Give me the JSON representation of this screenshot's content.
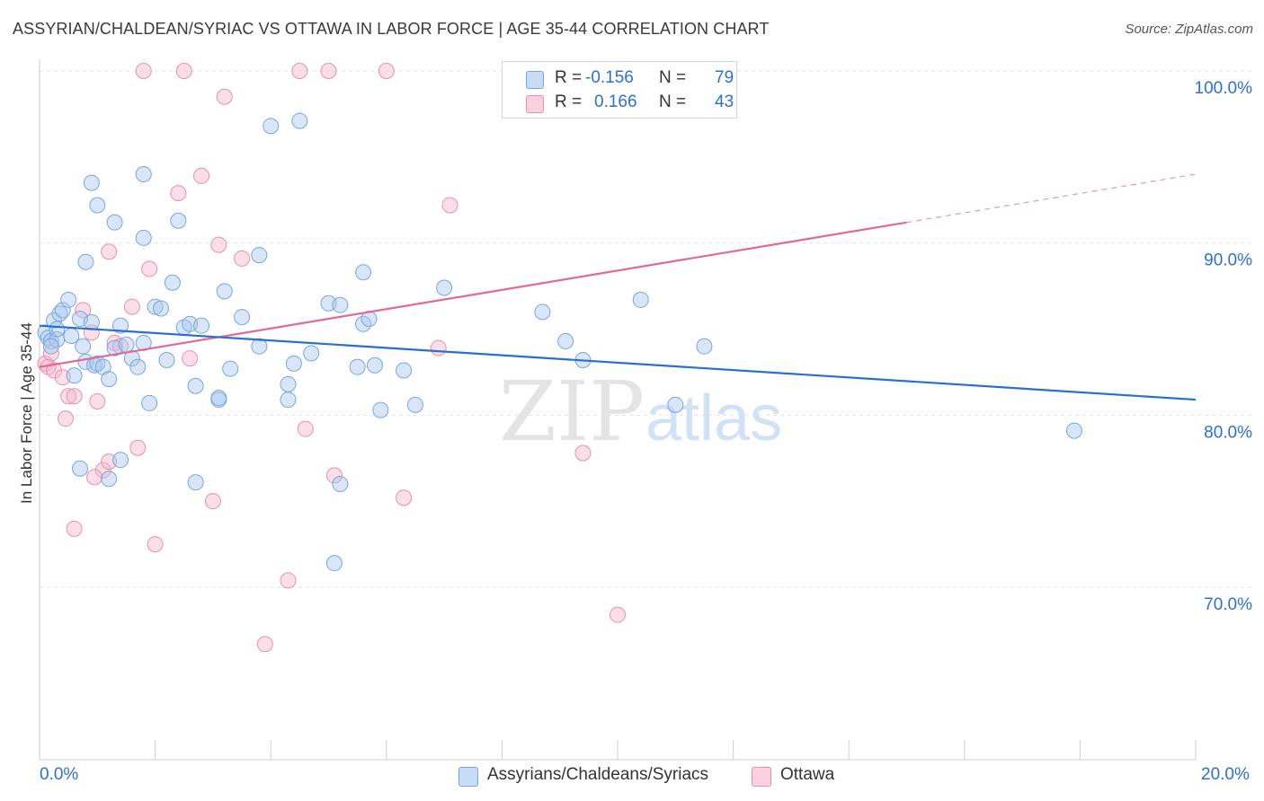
{
  "header": {
    "title": "ASSYRIAN/CHALDEAN/SYRIAC VS OTTAWA IN LABOR FORCE | AGE 35-44 CORRELATION CHART",
    "source": "Source: ZipAtlas.com"
  },
  "watermark": {
    "zip": "ZIP",
    "atlas": "atlas"
  },
  "legend": {
    "series1": {
      "r_label": "R = ",
      "r_value": "-0.156",
      "n_label": "N = ",
      "n_value": "79",
      "color": "#a8c8f0"
    },
    "series2": {
      "r_label": "R = ",
      "r_value": "0.166",
      "n_label": "N = ",
      "n_value": "43",
      "color": "#f5b8cc"
    }
  },
  "bottom_legend": {
    "series1": "Assyrians/Chaldeans/Syriacs",
    "series2": "Ottawa"
  },
  "colors": {
    "blue_fill": "#a8c8f0",
    "blue_stroke": "#7aa6dd",
    "blue_line": "#2a6fcf",
    "pink_fill": "#f5b8cc",
    "pink_stroke": "#e890ad",
    "pink_line": "#e06a94",
    "grid": "#e3e3e3",
    "axis_text": "#2e6fd0"
  },
  "chart_data": {
    "type": "scatter",
    "title": "ASSYRIAN/CHALDEAN/SYRIAC VS OTTAWA IN LABOR FORCE | AGE 35-44 CORRELATION CHART",
    "xlabel": "",
    "ylabel": "In Labor Force | Age 35-44",
    "xlim": [
      0,
      20
    ],
    "ylim": [
      60,
      101
    ],
    "x_tick_labels": [
      "0.0%",
      "20.0%"
    ],
    "y_ticks": [
      70,
      80,
      90,
      100
    ],
    "y_tick_labels": [
      "70.0%",
      "80.0%",
      "90.0%",
      "100.0%"
    ],
    "grid": true,
    "series": [
      {
        "name": "Assyrians/Chaldeans/Syriacs",
        "r": -0.156,
        "n": 79,
        "trend": {
          "x0": 0,
          "y0": 85.2,
          "x1": 20,
          "y1": 80.9,
          "x_solid_end": 20
        },
        "points": [
          [
            0.1,
            84.8
          ],
          [
            0.15,
            84.5
          ],
          [
            0.2,
            84.3
          ],
          [
            0.25,
            85.5
          ],
          [
            0.3,
            84.4
          ],
          [
            0.35,
            85.9
          ],
          [
            0.4,
            86.1
          ],
          [
            0.5,
            86.7
          ],
          [
            0.55,
            84.6
          ],
          [
            0.6,
            82.3
          ],
          [
            0.7,
            85.6
          ],
          [
            0.75,
            84.0
          ],
          [
            0.8,
            83.1
          ],
          [
            0.9,
            85.4
          ],
          [
            0.95,
            82.9
          ],
          [
            1.0,
            83.0
          ],
          [
            1.1,
            82.8
          ],
          [
            1.2,
            82.1
          ],
          [
            1.3,
            83.9
          ],
          [
            1.4,
            85.2
          ],
          [
            1.5,
            84.1
          ],
          [
            1.6,
            83.3
          ],
          [
            1.7,
            82.8
          ],
          [
            1.8,
            84.2
          ],
          [
            1.9,
            80.7
          ],
          [
            2.0,
            86.3
          ],
          [
            2.1,
            86.2
          ],
          [
            2.2,
            83.2
          ],
          [
            2.3,
            87.7
          ],
          [
            2.5,
            85.1
          ],
          [
            2.6,
            85.3
          ],
          [
            2.7,
            81.7
          ],
          [
            2.8,
            85.2
          ],
          [
            3.1,
            80.9
          ],
          [
            3.2,
            87.2
          ],
          [
            3.3,
            82.7
          ],
          [
            3.5,
            85.7
          ],
          [
            3.8,
            84.0
          ],
          [
            4.3,
            81.8
          ],
          [
            4.4,
            83.0
          ],
          [
            4.7,
            83.6
          ],
          [
            5.0,
            86.5
          ],
          [
            5.2,
            86.4
          ],
          [
            5.5,
            82.8
          ],
          [
            5.6,
            85.3
          ],
          [
            5.7,
            85.6
          ],
          [
            5.8,
            82.9
          ],
          [
            5.9,
            80.3
          ],
          [
            6.3,
            82.6
          ],
          [
            6.5,
            80.6
          ],
          [
            7.0,
            87.4
          ],
          [
            8.7,
            86.0
          ],
          [
            9.1,
            84.3
          ],
          [
            9.4,
            83.2
          ],
          [
            10.4,
            86.7
          ],
          [
            11.0,
            80.6
          ],
          [
            11.5,
            84.0
          ],
          [
            0.9,
            93.5
          ],
          [
            1.3,
            91.2
          ],
          [
            1.0,
            92.2
          ],
          [
            1.8,
            94.0
          ],
          [
            2.4,
            91.3
          ],
          [
            1.8,
            90.3
          ],
          [
            0.8,
            88.9
          ],
          [
            3.8,
            89.3
          ],
          [
            5.6,
            88.3
          ],
          [
            4.0,
            96.8
          ],
          [
            4.5,
            97.1
          ],
          [
            1.2,
            76.3
          ],
          [
            1.4,
            77.4
          ],
          [
            2.7,
            76.1
          ],
          [
            5.2,
            76.0
          ],
          [
            5.1,
            71.4
          ],
          [
            17.9,
            79.1
          ],
          [
            0.3,
            85.0
          ],
          [
            0.2,
            84.0
          ],
          [
            0.7,
            76.9
          ],
          [
            3.1,
            81.0
          ],
          [
            4.3,
            80.9
          ]
        ]
      },
      {
        "name": "Ottawa",
        "r": 0.166,
        "n": 43,
        "trend": {
          "x0": 0,
          "y0": 82.8,
          "x1": 20,
          "y1": 94.0,
          "x_solid_end": 15
        },
        "points": [
          [
            0.1,
            83.0
          ],
          [
            0.15,
            82.8
          ],
          [
            0.2,
            83.6
          ],
          [
            0.25,
            82.6
          ],
          [
            0.4,
            82.2
          ],
          [
            0.5,
            81.1
          ],
          [
            0.6,
            81.1
          ],
          [
            0.75,
            86.1
          ],
          [
            0.9,
            84.8
          ],
          [
            1.0,
            80.8
          ],
          [
            1.1,
            76.8
          ],
          [
            1.2,
            77.3
          ],
          [
            1.3,
            84.2
          ],
          [
            1.4,
            84.0
          ],
          [
            1.6,
            86.3
          ],
          [
            1.7,
            78.1
          ],
          [
            1.9,
            88.5
          ],
          [
            2.0,
            72.5
          ],
          [
            2.4,
            92.9
          ],
          [
            2.6,
            83.3
          ],
          [
            2.8,
            93.9
          ],
          [
            3.0,
            75.0
          ],
          [
            3.1,
            89.9
          ],
          [
            3.5,
            89.1
          ],
          [
            3.9,
            66.7
          ],
          [
            4.3,
            70.4
          ],
          [
            4.6,
            79.2
          ],
          [
            5.1,
            76.5
          ],
          [
            6.3,
            75.2
          ],
          [
            6.9,
            83.9
          ],
          [
            7.1,
            92.2
          ],
          [
            9.4,
            77.8
          ],
          [
            10.0,
            68.4
          ],
          [
            0.45,
            79.8
          ],
          [
            0.6,
            73.4
          ],
          [
            1.2,
            89.5
          ],
          [
            3.2,
            98.5
          ],
          [
            1.8,
            100.0
          ],
          [
            2.5,
            100.0
          ],
          [
            4.5,
            100.0
          ],
          [
            5.0,
            100.0
          ],
          [
            6.0,
            100.0
          ],
          [
            0.95,
            76.4
          ]
        ]
      }
    ]
  }
}
